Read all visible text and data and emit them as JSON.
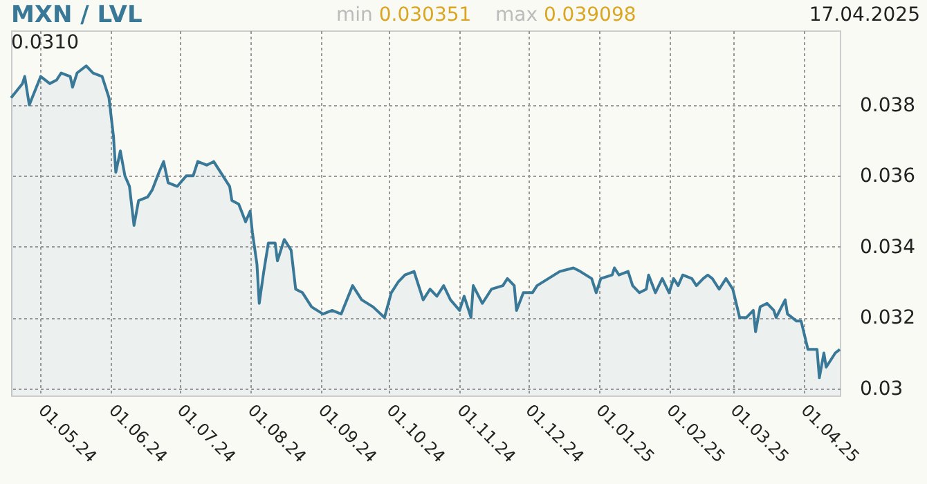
{
  "chart_data": {
    "type": "area",
    "title": "MXN / LVL",
    "annotations": [
      "min 0.030351",
      "max 0.039098",
      "17.04.2025",
      "0.0310"
    ],
    "x": [
      "2024-04-18",
      "2024-04-23",
      "2024-04-24",
      "2024-04-26",
      "2024-05-01",
      "2024-05-05",
      "2024-05-08",
      "2024-05-10",
      "2024-05-14",
      "2024-05-15",
      "2024-05-17",
      "2024-05-21",
      "2024-05-24",
      "2024-05-28",
      "2024-05-31",
      "2024-06-02",
      "2024-06-03",
      "2024-06-05",
      "2024-06-07",
      "2024-06-09",
      "2024-06-11",
      "2024-06-13",
      "2024-06-17",
      "2024-06-19",
      "2024-06-22",
      "2024-06-24",
      "2024-06-26",
      "2024-06-30",
      "2024-07-04",
      "2024-07-07",
      "2024-07-09",
      "2024-07-13",
      "2024-07-16",
      "2024-07-20",
      "2024-07-23",
      "2024-07-24",
      "2024-07-27",
      "2024-07-30",
      "2024-08-01",
      "2024-08-02",
      "2024-08-04",
      "2024-08-05",
      "2024-08-07",
      "2024-08-09",
      "2024-08-12",
      "2024-08-13",
      "2024-08-16",
      "2024-08-19",
      "2024-08-21",
      "2024-08-24",
      "2024-08-28",
      "2024-09-02",
      "2024-09-06",
      "2024-09-10",
      "2024-09-15",
      "2024-09-17",
      "2024-09-19",
      "2024-09-24",
      "2024-09-29",
      "2024-10-02",
      "2024-10-05",
      "2024-10-08",
      "2024-10-12",
      "2024-10-16",
      "2024-10-19",
      "2024-10-22",
      "2024-10-25",
      "2024-10-28",
      "2024-11-01",
      "2024-11-03",
      "2024-11-06",
      "2024-11-07",
      "2024-11-11",
      "2024-11-13",
      "2024-11-15",
      "2024-11-20",
      "2024-11-22",
      "2024-11-25",
      "2024-11-26",
      "2024-11-29",
      "2024-12-03",
      "2024-12-05",
      "2024-12-10",
      "2024-12-15",
      "2024-12-21",
      "2024-12-24",
      "2024-12-29",
      "2024-12-31",
      "2025-01-02",
      "2025-01-07",
      "2025-01-08",
      "2025-01-10",
      "2025-01-14",
      "2025-01-16",
      "2025-01-19",
      "2025-01-22",
      "2025-01-23",
      "2025-01-26",
      "2025-01-29",
      "2025-02-01",
      "2025-02-03",
      "2025-02-05",
      "2025-02-07",
      "2025-02-11",
      "2025-02-13",
      "2025-02-16",
      "2025-02-18",
      "2025-02-20",
      "2025-02-23",
      "2025-02-26",
      "2025-03-01",
      "2025-03-04",
      "2025-03-07",
      "2025-03-10",
      "2025-03-11",
      "2025-03-13",
      "2025-03-16",
      "2025-03-19",
      "2025-03-20",
      "2025-03-24",
      "2025-03-25",
      "2025-03-29",
      "2025-03-31",
      "2025-04-03",
      "2025-04-07",
      "2025-04-08",
      "2025-04-10",
      "2025-04-11",
      "2025-04-15",
      "2025-04-17"
    ],
    "series": [
      {
        "color": "#3a7898",
        "values": [
          0.0382,
          0.0386,
          0.0388,
          0.038,
          0.0388,
          0.0386,
          0.0387,
          0.0389,
          0.0388,
          0.0385,
          0.0389,
          0.0391,
          0.0389,
          0.0388,
          0.0382,
          0.0371,
          0.0361,
          0.0367,
          0.036,
          0.0357,
          0.0346,
          0.0353,
          0.0354,
          0.0356,
          0.0361,
          0.0364,
          0.0358,
          0.0357,
          0.036,
          0.036,
          0.0364,
          0.0363,
          0.0364,
          0.036,
          0.0357,
          0.0353,
          0.0352,
          0.0347,
          0.035,
          0.0344,
          0.0335,
          0.0324,
          0.0333,
          0.0341,
          0.0341,
          0.0336,
          0.0342,
          0.0339,
          0.0328,
          0.0327,
          0.0323,
          0.0321,
          0.0322,
          0.0321,
          0.0329,
          0.0327,
          0.0325,
          0.0323,
          0.032,
          0.0327,
          0.033,
          0.0332,
          0.0333,
          0.0325,
          0.0328,
          0.0326,
          0.0329,
          0.0325,
          0.0322,
          0.0326,
          0.032,
          0.0329,
          0.0324,
          0.0326,
          0.0328,
          0.0329,
          0.0331,
          0.0329,
          0.0322,
          0.0327,
          0.0327,
          0.0329,
          0.0331,
          0.0333,
          0.0334,
          0.0333,
          0.0331,
          0.0327,
          0.0331,
          0.0332,
          0.0334,
          0.0332,
          0.0333,
          0.0329,
          0.0327,
          0.0328,
          0.0332,
          0.0327,
          0.0331,
          0.0327,
          0.0331,
          0.0329,
          0.0332,
          0.0331,
          0.0329,
          0.0331,
          0.0332,
          0.0331,
          0.0328,
          0.0331,
          0.0328,
          0.032,
          0.032,
          0.0322,
          0.0316,
          0.0323,
          0.0324,
          0.0322,
          0.032,
          0.0325,
          0.0321,
          0.0319,
          0.0319,
          0.0311,
          0.0311,
          0.0303,
          0.031,
          0.0306,
          0.031,
          0.0311
        ]
      }
    ],
    "xlim": [
      "2024-04-18",
      "2025-04-17"
    ],
    "xticks": [
      {
        "value": "2024-05-01",
        "label": "01.05.24"
      },
      {
        "value": "2024-06-01",
        "label": "01.06.24"
      },
      {
        "value": "2024-07-01",
        "label": "01.07.24"
      },
      {
        "value": "2024-08-01",
        "label": "01.08.24"
      },
      {
        "value": "2024-09-01",
        "label": "01.09.24"
      },
      {
        "value": "2024-10-01",
        "label": "01.10.24"
      },
      {
        "value": "2024-11-01",
        "label": "01.11.24"
      },
      {
        "value": "2024-12-01",
        "label": "01.12.24"
      },
      {
        "value": "2025-01-01",
        "label": "01.01.25"
      },
      {
        "value": "2025-02-01",
        "label": "01.02.25"
      },
      {
        "value": "2025-03-01",
        "label": "01.03.25"
      },
      {
        "value": "2025-04-01",
        "label": "01.04.25"
      }
    ],
    "ylim": [
      0.0298,
      0.0401
    ],
    "yticks": [
      0.03,
      0.032,
      0.034,
      0.036,
      0.038
    ],
    "grid": true,
    "marker": "none",
    "line_style": "solid"
  }
}
